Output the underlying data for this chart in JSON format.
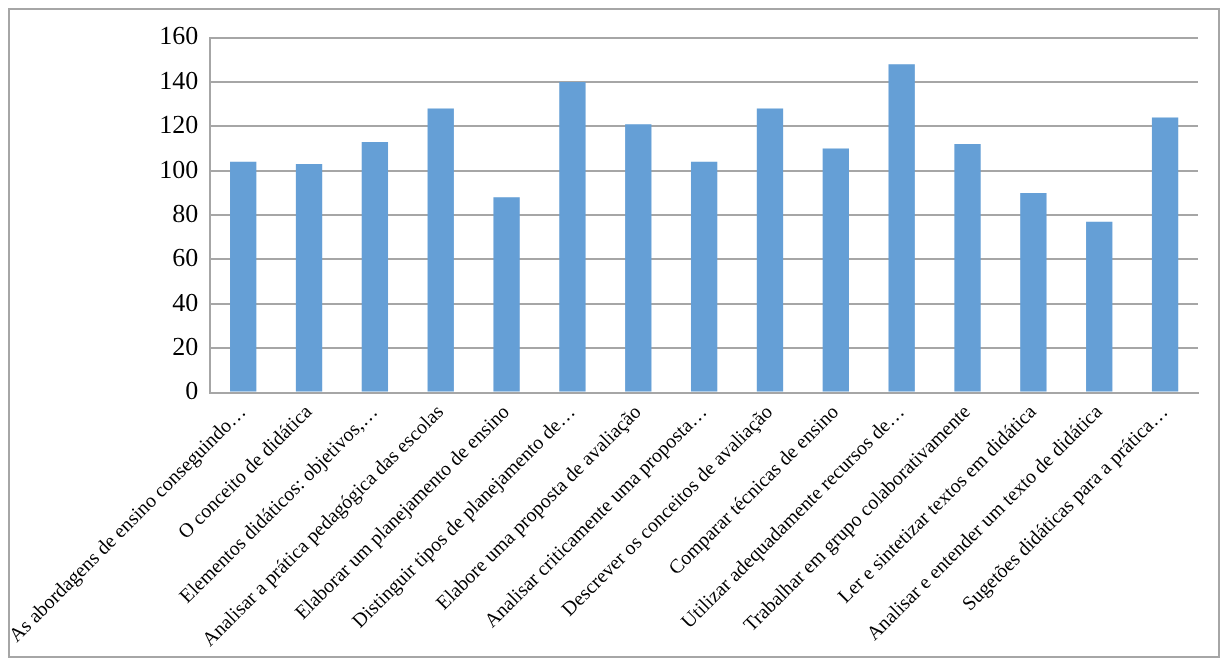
{
  "chart_data": {
    "type": "bar",
    "categories": [
      "As abordagens de ensino conseguindo…",
      "O conceito de didática",
      "Elementos didáticos: objetivos,…",
      "Analisar a prática pedagógica das escolas",
      "Elaborar um planejamento de ensino",
      "Distinguir tipos de planejamento de…",
      "Elabore uma proposta de avaliação",
      "Analisar criticamente uma proposta…",
      "Descrever os conceitos de avaliação",
      "Comparar técnicas de ensino",
      "Utilizar adequadamente recursos de…",
      "Trabalhar em grupo colaborativamente",
      "Ler e sintetizar textos em didática",
      "Analisar e entender um texto de didática",
      "Sugetões didáticas para a prática…"
    ],
    "values": [
      104,
      103,
      113,
      128,
      88,
      140,
      121,
      104,
      128,
      110,
      148,
      112,
      90,
      77,
      124
    ],
    "color": "#659fd6",
    "ylim": [
      0,
      160
    ],
    "yticks": [
      0,
      20,
      40,
      60,
      80,
      100,
      120,
      140,
      160
    ],
    "grid": "y",
    "legend": false
  }
}
